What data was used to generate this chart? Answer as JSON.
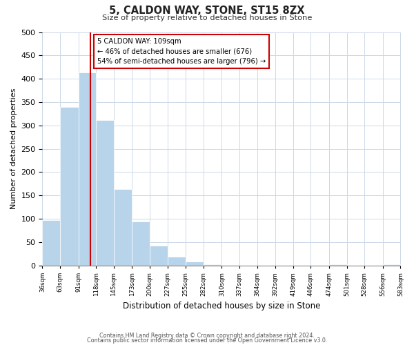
{
  "title": "5, CALDON WAY, STONE, ST15 8ZX",
  "subtitle": "Size of property relative to detached houses in Stone",
  "xlabel": "Distribution of detached houses by size in Stone",
  "ylabel": "Number of detached properties",
  "bar_color": "#b8d4ea",
  "bins": [
    36,
    63,
    91,
    118,
    145,
    173,
    200,
    227,
    255,
    282,
    310,
    337,
    364,
    392,
    419,
    446,
    474,
    501,
    528,
    556,
    583
  ],
  "counts": [
    97,
    340,
    413,
    311,
    163,
    94,
    42,
    19,
    8,
    3,
    1,
    0,
    0,
    0,
    0,
    0,
    2,
    0,
    0,
    2
  ],
  "tick_labels": [
    "36sqm",
    "63sqm",
    "91sqm",
    "118sqm",
    "145sqm",
    "173sqm",
    "200sqm",
    "227sqm",
    "255sqm",
    "282sqm",
    "310sqm",
    "337sqm",
    "364sqm",
    "392sqm",
    "419sqm",
    "446sqm",
    "474sqm",
    "501sqm",
    "528sqm",
    "556sqm",
    "583sqm"
  ],
  "property_size": 109,
  "vline_color": "#cc0000",
  "annotation_text": "5 CALDON WAY: 109sqm\n← 46% of detached houses are smaller (676)\n54% of semi-detached houses are larger (796) →",
  "annotation_box_color": "#ffffff",
  "annotation_box_edge": "#cc0000",
  "ylim": [
    0,
    500
  ],
  "yticks": [
    0,
    50,
    100,
    150,
    200,
    250,
    300,
    350,
    400,
    450,
    500
  ],
  "footnote1": "Contains HM Land Registry data © Crown copyright and database right 2024.",
  "footnote2": "Contains public sector information licensed under the Open Government Licence v3.0.",
  "bg_color": "#ffffff",
  "grid_color": "#ccd8e8"
}
